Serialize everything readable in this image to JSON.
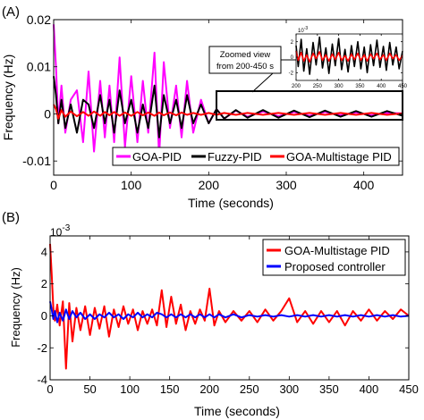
{
  "chart_data": [
    {
      "type": "line",
      "panel_label": "(A)",
      "xlabel": "Time (seconds)",
      "ylabel": "Frequency (Hz)",
      "xlim": [
        0,
        450
      ],
      "ylim": [
        -0.013,
        0.02
      ],
      "xticks": [
        0,
        100,
        200,
        300,
        400
      ],
      "yticks": [
        -0.01,
        0,
        0.01,
        0.02
      ],
      "ytick_labels": [
        "-0.01",
        "0",
        "0.01",
        "0.02"
      ],
      "grid": false,
      "legend_placement": "bottom",
      "series": [
        {
          "name": "GOA-PID",
          "color": "#ff00ff",
          "x": [
            0,
            3,
            6,
            10,
            15,
            22,
            30,
            38,
            45,
            52,
            60,
            66,
            72,
            78,
            85,
            92,
            100,
            108,
            115,
            122,
            130,
            136,
            142,
            150,
            158,
            165,
            172,
            180,
            190,
            200,
            210,
            220,
            235,
            250,
            270,
            290,
            310,
            330,
            350,
            370,
            390,
            410,
            430,
            450
          ],
          "y": [
            0.019,
            0.01,
            -0.002,
            0.006,
            -0.004,
            0.003,
            0.005,
            -0.006,
            0.009,
            -0.008,
            0.007,
            -0.005,
            0.006,
            -0.006,
            0.012,
            -0.007,
            0.008,
            -0.006,
            0.007,
            -0.004,
            0.013,
            -0.009,
            0.011,
            -0.003,
            0.006,
            -0.005,
            0.007,
            -0.004,
            0.003,
            -0.002,
            0.001,
            -0.001,
            0.0007,
            -0.0006,
            0.0005,
            -0.0005,
            0.0004,
            -0.0004,
            0.0004,
            -0.0003,
            0.0003,
            -0.0003,
            0.0002,
            0.0001
          ]
        },
        {
          "name": "Fuzzy-PID",
          "color": "#000000",
          "x": [
            0,
            3,
            6,
            10,
            15,
            22,
            30,
            38,
            45,
            52,
            60,
            66,
            72,
            78,
            85,
            92,
            100,
            108,
            115,
            122,
            130,
            136,
            142,
            150,
            158,
            165,
            172,
            180,
            190,
            200,
            210,
            220,
            235,
            250,
            270,
            290,
            310,
            330,
            350,
            370,
            390,
            410,
            430,
            450
          ],
          "y": [
            0.008,
            0.004,
            -0.002,
            0.003,
            -0.003,
            0.002,
            -0.004,
            0.003,
            0.002,
            -0.003,
            0.004,
            -0.002,
            0.003,
            -0.004,
            0.005,
            -0.002,
            0.003,
            -0.004,
            0.002,
            -0.003,
            0.006,
            -0.005,
            0.004,
            -0.002,
            0.003,
            -0.003,
            0.004,
            -0.002,
            0.002,
            -0.002,
            0.001,
            -0.001,
            0.0008,
            -0.0008,
            0.0008,
            -0.0008,
            0.0007,
            -0.0007,
            0.0007,
            -0.0006,
            0.0006,
            -0.0006,
            0.0006,
            -0.0004
          ]
        },
        {
          "name": "GOA-Multistage PID",
          "color": "#ff0000",
          "x": [
            0,
            3,
            6,
            10,
            15,
            22,
            30,
            38,
            45,
            52,
            60,
            66,
            72,
            78,
            85,
            92,
            100,
            108,
            115,
            122,
            130,
            136,
            142,
            150,
            158,
            165,
            172,
            180,
            190,
            200,
            210,
            220,
            235,
            250,
            270,
            290,
            310,
            330,
            350,
            370,
            390,
            410,
            430,
            450
          ],
          "y": [
            0.002,
            0.001,
            -0.001,
            0.0008,
            -0.0006,
            0.0005,
            -0.0005,
            0.0004,
            -0.0004,
            0.0005,
            -0.0004,
            0.0004,
            -0.0003,
            0.0004,
            -0.0004,
            0.0003,
            -0.0004,
            0.0004,
            -0.0003,
            0.0003,
            -0.0004,
            0.0003,
            -0.0003,
            0.0003,
            -0.0003,
            0.0003,
            -0.0002,
            0.0002,
            -0.0002,
            0.0002,
            -0.0002,
            0.0002,
            -0.0002,
            0.0002,
            -0.0002,
            0.0002,
            -0.0002,
            0.0002,
            -0.0002,
            0.0002,
            -0.0002,
            0.0002,
            -0.0002,
            0.0001
          ]
        }
      ],
      "annotation": {
        "text_lines": [
          "Zoomed view",
          "from 200-450 s"
        ],
        "box_range": [
          200,
          450
        ]
      },
      "inset": {
        "exponent_label": "10",
        "exponent_power": "-3",
        "xlim": [
          200,
          450
        ],
        "ylim": [
          -3,
          3
        ],
        "xticks": [
          200,
          250,
          300,
          350,
          400,
          450
        ],
        "yticks": [
          -2,
          0,
          2
        ],
        "series": [
          {
            "name": "Fuzzy-PID",
            "color": "#000000",
            "x": [
              200,
              205,
              212,
              218,
              225,
              232,
              240,
              247,
              255,
              262,
              270,
              277,
              285,
              292,
              300,
              307,
              315,
              322,
              330,
              337,
              345,
              352,
              360,
              367,
              375,
              382,
              390,
              397,
              405,
              412,
              420,
              427,
              435,
              442,
              450
            ],
            "y": [
              1.5,
              -1.2,
              2.3,
              -1.8,
              1.1,
              -2.2,
              1.9,
              -1.0,
              2.6,
              -1.4,
              1.2,
              -2.1,
              1.7,
              -1.1,
              2.4,
              -1.6,
              1.0,
              -1.9,
              1.5,
              -1.2,
              2.0,
              -1.5,
              1.3,
              -2.0,
              1.6,
              -1.1,
              2.2,
              -1.3,
              1.4,
              -1.7,
              1.9,
              -1.0,
              1.3,
              -1.5,
              0.8
            ]
          },
          {
            "name": "GOA-Multistage PID",
            "color": "#ff0000",
            "x": [
              200,
              205,
              212,
              218,
              225,
              232,
              240,
              247,
              255,
              262,
              270,
              277,
              285,
              292,
              300,
              307,
              315,
              322,
              330,
              337,
              345,
              352,
              360,
              367,
              375,
              382,
              390,
              397,
              405,
              412,
              420,
              427,
              435,
              442,
              450
            ],
            "y": [
              0.8,
              -0.4,
              0.6,
              -0.5,
              0.3,
              -0.6,
              0.5,
              -0.2,
              0.7,
              -0.4,
              0.3,
              -0.5,
              0.4,
              -0.3,
              0.6,
              -0.4,
              0.2,
              -0.5,
              0.4,
              -0.3,
              0.5,
              -0.4,
              0.3,
              -0.5,
              0.4,
              -0.2,
              0.5,
              -0.3,
              0.3,
              -0.4,
              0.5,
              -0.2,
              0.3,
              -0.4,
              0.2
            ]
          }
        ]
      }
    },
    {
      "type": "line",
      "panel_label": "(B)",
      "xlabel": "Time (seconds)",
      "ylabel": "Frequency (Hz)",
      "exponent_label": "10",
      "exponent_power": "-3",
      "xlim": [
        0,
        450
      ],
      "ylim": [
        -4,
        5
      ],
      "xticks": [
        0,
        50,
        100,
        150,
        200,
        250,
        300,
        350,
        400,
        450
      ],
      "yticks": [
        -4,
        -2,
        0,
        2,
        4
      ],
      "grid": false,
      "legend_placement": "top-right",
      "series": [
        {
          "name": "GOA-Multistage PID",
          "color": "#ff0000",
          "x": [
            0,
            2,
            4,
            6,
            9,
            12,
            16,
            20,
            24,
            28,
            33,
            38,
            44,
            50,
            56,
            62,
            68,
            74,
            80,
            86,
            92,
            98,
            104,
            110,
            116,
            122,
            128,
            134,
            140,
            146,
            152,
            158,
            164,
            170,
            176,
            182,
            188,
            194,
            200,
            206,
            212,
            220,
            230,
            240,
            250,
            260,
            270,
            280,
            290,
            300,
            310,
            320,
            330,
            340,
            350,
            360,
            370,
            380,
            390,
            400,
            410,
            420,
            430,
            440,
            450
          ],
          "y": [
            4.5,
            2.6,
            0.5,
            -0.3,
            0.7,
            -0.6,
            0.9,
            -3.3,
            0.8,
            -1.6,
            0.5,
            -0.9,
            0.6,
            -1.2,
            0.5,
            -0.8,
            0.6,
            -1.3,
            0.4,
            -0.7,
            0.6,
            -0.5,
            0.4,
            -0.9,
            0.3,
            -0.5,
            0.4,
            -0.6,
            1.6,
            -0.7,
            1.2,
            -0.5,
            0.7,
            -0.9,
            0.3,
            -0.5,
            0.4,
            -0.3,
            1.7,
            -0.6,
            0.3,
            -0.4,
            0.3,
            -0.3,
            0.3,
            -0.4,
            0.4,
            -0.3,
            0.3,
            1.1,
            -0.4,
            0.3,
            -0.5,
            0.3,
            -0.4,
            0.3,
            -0.6,
            0.3,
            -0.3,
            0.4,
            -0.3,
            0.3,
            -0.2,
            0.4,
            0.0
          ]
        },
        {
          "name": "Proposed controller",
          "color": "#0000ff",
          "x": [
            0,
            2,
            4,
            6,
            9,
            12,
            16,
            20,
            24,
            28,
            33,
            38,
            44,
            50,
            56,
            62,
            68,
            74,
            80,
            86,
            92,
            98,
            104,
            110,
            116,
            122,
            128,
            134,
            140,
            146,
            152,
            158,
            164,
            170,
            176,
            182,
            188,
            194,
            200,
            206,
            212,
            220,
            230,
            240,
            250,
            260,
            270,
            280,
            290,
            300,
            310,
            320,
            330,
            340,
            350,
            360,
            370,
            380,
            390,
            400,
            410,
            420,
            430,
            440,
            450
          ],
          "y": [
            0.9,
            0.4,
            -0.2,
            0.3,
            -0.4,
            0.2,
            -0.3,
            0.4,
            -0.2,
            0.3,
            -0.1,
            0.2,
            -0.2,
            0.1,
            -0.2,
            0.1,
            -0.1,
            0.2,
            -0.1,
            0.1,
            -0.2,
            0.1,
            -0.1,
            0.2,
            -0.1,
            0.1,
            -0.1,
            0.2,
            0.1,
            -0.1,
            0.1,
            -0.1,
            0.1,
            -0.1,
            0.1,
            -0.1,
            0.1,
            -0.1,
            0.1,
            -0.1,
            0.1,
            -0.1,
            0.1,
            -0.1,
            0.05,
            -0.05,
            0.05,
            -0.05,
            0.05,
            -0.05,
            0.05,
            -0.05,
            0.05,
            -0.05,
            0.05,
            -0.05,
            0.05,
            -0.05,
            0.05,
            -0.05,
            0.05,
            -0.05,
            0.05,
            -0.05,
            0.0
          ]
        }
      ]
    }
  ]
}
